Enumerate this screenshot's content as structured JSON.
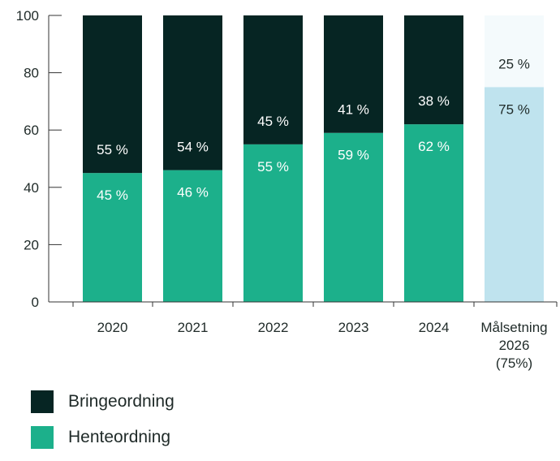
{
  "chart_data": {
    "type": "bar",
    "stacked": true,
    "categories": [
      "2020",
      "2021",
      "2022",
      "2023",
      "2024",
      "Målsetning 2026 (75%)"
    ],
    "category_label_lines": [
      [
        "2020"
      ],
      [
        "2021"
      ],
      [
        "2022"
      ],
      [
        "2023"
      ],
      [
        "2024"
      ],
      [
        "Målsetning",
        "2026",
        "(75%)"
      ]
    ],
    "series": [
      {
        "name": "Henteordning",
        "values": [
          45,
          46,
          55,
          59,
          62,
          75
        ],
        "labels": [
          "45 %",
          "46 %",
          "55 %",
          "59 %",
          "62 %",
          "75 %"
        ]
      },
      {
        "name": "Bringeordning",
        "values": [
          55,
          54,
          45,
          41,
          38,
          25
        ],
        "labels": [
          "55 %",
          "54 %",
          "45 %",
          "41 %",
          "38 %",
          "25 %"
        ]
      }
    ],
    "ylim": [
      0,
      100
    ],
    "yticks": [
      "0",
      "20",
      "40",
      "60",
      "80",
      "100"
    ],
    "grid": false,
    "legend_position": "bottom-left",
    "colors": {
      "Henteordning": "#1cb08b",
      "Bringeordning": "#062523",
      "target_bottom": "#bfe3ee",
      "target_top": "#f4fafc",
      "axis": "#333333"
    }
  },
  "legend": [
    {
      "label": "Bringeordning",
      "color": "#062523"
    },
    {
      "label": "Henteordning",
      "color": "#1cb08b"
    }
  ]
}
